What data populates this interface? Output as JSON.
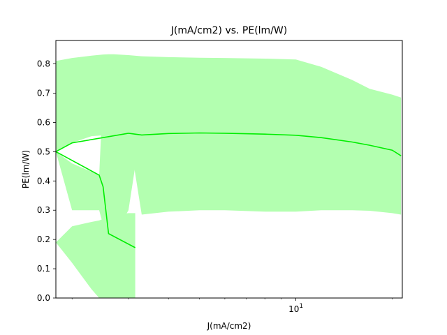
{
  "chart_data": {
    "type": "line",
    "title": "J(mA/cm2) vs. PE(lm/W)",
    "xlabel": "J(mA/cm2)",
    "ylabel": "PE(lm/W)",
    "xscale": "log",
    "xlim": [
      1.78,
      21.5
    ],
    "ylim": [
      0.0,
      0.88
    ],
    "grid": false,
    "yticks": [
      0.0,
      0.1,
      0.2,
      0.3,
      0.4,
      0.5,
      0.6,
      0.7,
      0.8
    ],
    "ytick_labels": [
      "0.0",
      "0.1",
      "0.2",
      "0.3",
      "0.4",
      "0.5",
      "0.6",
      "0.7",
      "0.8"
    ],
    "xticks_major": [
      10
    ],
    "xtick_major_labels": [
      "10^1"
    ],
    "xticks_minor": [
      2,
      3,
      4,
      5,
      6,
      7,
      8,
      9,
      20
    ],
    "colors": {
      "line": "#00ee00",
      "band": "#b3ffb0"
    },
    "series": [
      {
        "x": [
          1.78,
          2.0,
          3.0,
          3.3,
          4.0,
          5.0,
          6.0,
          8.0,
          10.0,
          12.0,
          15.0,
          17.0,
          20.0,
          21.3
        ],
        "y": [
          0.5,
          0.53,
          0.563,
          0.557,
          0.562,
          0.564,
          0.563,
          0.56,
          0.556,
          0.548,
          0.533,
          0.522,
          0.505,
          0.486
        ]
      },
      {
        "x": [
          1.78,
          2.43,
          2.5,
          2.6,
          3.15
        ],
        "y": [
          0.5,
          0.42,
          0.38,
          0.22,
          0.172
        ]
      }
    ],
    "bands": [
      {
        "x": [
          1.78,
          2.0,
          2.3,
          2.5,
          2.6,
          2.7,
          3.0,
          3.3,
          4.0,
          5.0,
          6.0,
          8.0,
          10.0,
          12.0,
          15.0,
          17.0,
          20.0,
          21.3
        ],
        "upper": [
          0.81,
          0.82,
          0.828,
          0.832,
          0.833,
          0.833,
          0.83,
          0.826,
          0.823,
          0.821,
          0.82,
          0.818,
          0.815,
          0.79,
          0.745,
          0.715,
          0.695,
          0.685
        ],
        "lower": [
          0.5,
          0.53,
          0.553,
          0.556,
          0.57,
          0.6,
          0.57,
          0.285,
          0.295,
          0.3,
          0.3,
          0.295,
          0.295,
          0.3,
          0.3,
          0.298,
          0.29,
          0.285
        ]
      },
      {
        "x": [
          1.78,
          2.0,
          2.43,
          2.5,
          2.6,
          3.0,
          3.15
        ],
        "upper": [
          0.5,
          0.46,
          0.42,
          0.7,
          0.8,
          0.72,
          0.45
        ],
        "lower": [
          0.5,
          0.3,
          0.3,
          0.25,
          0.18,
          0.3,
          0.45
        ]
      },
      {
        "x": [
          1.78,
          2.0,
          2.3,
          2.43,
          2.5,
          2.6,
          3.0,
          3.15
        ],
        "upper": [
          0.19,
          0.245,
          0.26,
          0.265,
          0.27,
          0.28,
          0.29,
          0.29
        ],
        "lower": [
          0.19,
          0.12,
          0.03,
          0.0,
          0.0,
          0.0,
          0.0,
          0.0
        ]
      }
    ]
  }
}
